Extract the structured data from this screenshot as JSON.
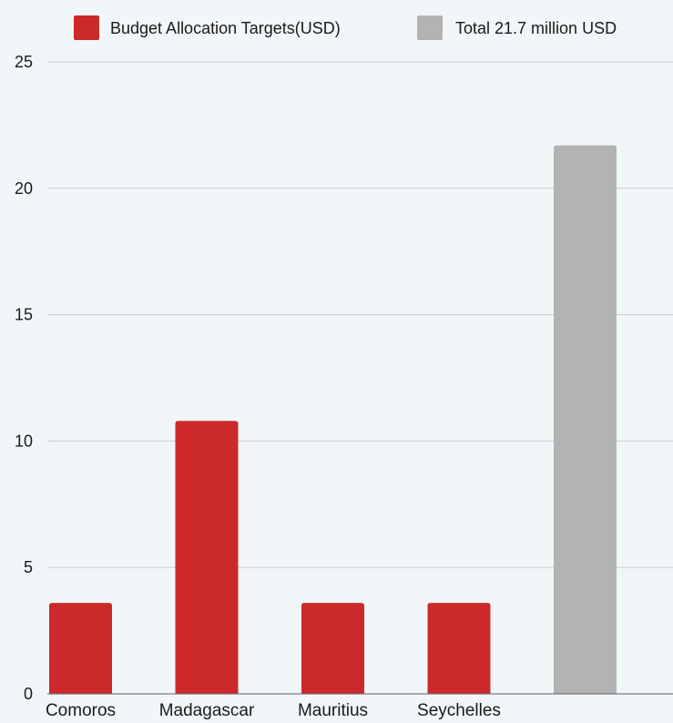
{
  "chart_data": {
    "type": "bar",
    "categories": [
      "Comoros",
      "Madagascar",
      "Mauritius",
      "Seychelles",
      ""
    ],
    "series": [
      {
        "name": "Budget Allocation Targets(USD)",
        "color": "#cc2a2a",
        "values": [
          3.6,
          10.8,
          3.6,
          3.6,
          null
        ]
      },
      {
        "name": "Total 21.7 million USD",
        "color": "#b3b3b3",
        "values": [
          null,
          null,
          null,
          null,
          21.7
        ]
      }
    ],
    "title": "",
    "xlabel": "",
    "ylabel": "",
    "ylim": [
      0,
      25
    ],
    "yticks": [
      "0",
      "5",
      "10",
      "15",
      "20",
      "25"
    ],
    "grid": true,
    "legend_position": "top"
  }
}
